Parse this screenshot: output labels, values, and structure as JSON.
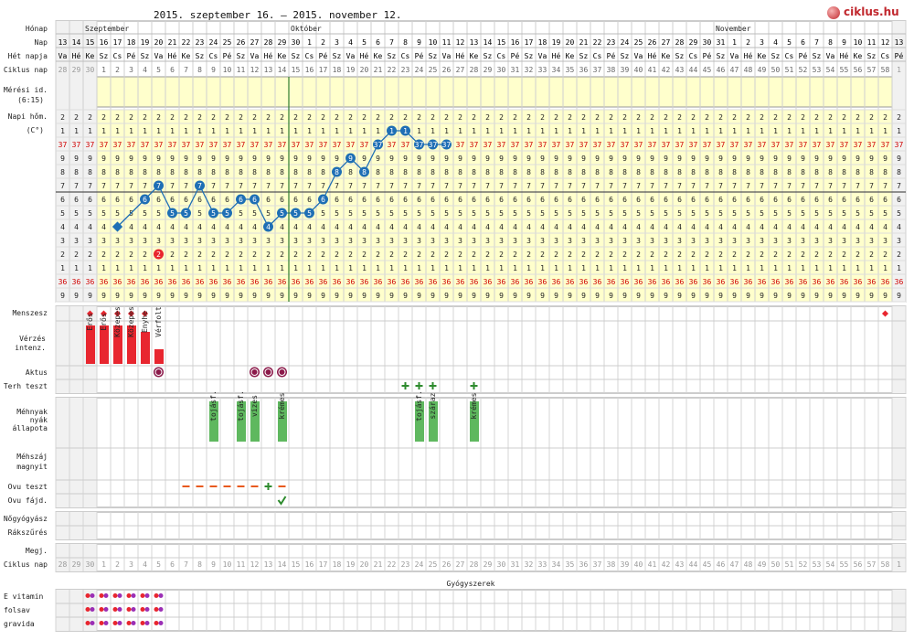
{
  "title": "2015. szeptember 16. – 2015. november 12.",
  "logo": {
    "text": "ciklus.hu"
  },
  "colors": {
    "accent": "#c1272d",
    "temp_line": "#1f6fb5",
    "temp_point": "#1f6fb5",
    "bleed": "#e8262f",
    "mucus": "#5fb85f",
    "yellow": "#ffffcc",
    "gray": "#f1f1f1",
    "ovu_line": "#2e7d2e",
    "red_text": "#d00000",
    "neg": "#e85a1e",
    "pos": "#2e8b2e"
  },
  "header": {
    "month_label": "Hónap",
    "day_label": "Nap",
    "weekday_label": "Hét napja",
    "cycle_label": "Ciklus nap",
    "measure_label": "Mérési id. (6:15)",
    "temp_label": "Napi hőm. (C°)",
    "months": [
      {
        "label": "Szeptember",
        "start": 3
      },
      {
        "label": "Október",
        "start": 18
      },
      {
        "label": "November",
        "start": 49
      }
    ]
  },
  "days": [
    13,
    14,
    15,
    16,
    17,
    18,
    19,
    20,
    21,
    22,
    23,
    24,
    25,
    26,
    27,
    28,
    29,
    30,
    1,
    2,
    3,
    4,
    5,
    6,
    7,
    8,
    9,
    10,
    11,
    12,
    13,
    14,
    15,
    16,
    17,
    18,
    19,
    20,
    21,
    22,
    23,
    24,
    25,
    26,
    27,
    28,
    29,
    30,
    31,
    1,
    2,
    3,
    4,
    5,
    6,
    7,
    8,
    9,
    10,
    11,
    12,
    13
  ],
  "weekdays": [
    "Va",
    "Hé",
    "Ke",
    "Sz",
    "Cs",
    "Pé",
    "Sz",
    "Va",
    "Hé",
    "Ke",
    "Sz",
    "Cs",
    "Pé",
    "Sz",
    "Va",
    "Hé",
    "Ke",
    "Sz",
    "Cs",
    "Pé",
    "Sz",
    "Va",
    "Hé",
    "Ke",
    "Sz",
    "Cs",
    "Pé",
    "Sz",
    "Va",
    "Hé",
    "Ke",
    "Sz",
    "Cs",
    "Pé",
    "Sz",
    "Va",
    "Hé",
    "Ke",
    "Sz",
    "Cs",
    "Pé",
    "Sz",
    "Va",
    "Hé",
    "Ke",
    "Sz",
    "Cs",
    "Pé",
    "Sz",
    "Va",
    "Hé",
    "Ke",
    "Sz",
    "Cs",
    "Pé",
    "Sz",
    "Va",
    "Hé",
    "Ke",
    "Sz",
    "Cs",
    "Pé"
  ],
  "cycle_days": [
    "28",
    "29",
    "30",
    "1",
    "2",
    "3",
    "4",
    "5",
    "6",
    "7",
    "8",
    "9",
    "10",
    "11",
    "12",
    "13",
    "14",
    "15",
    "16",
    "17",
    "18",
    "19",
    "20",
    "21",
    "22",
    "23",
    "24",
    "25",
    "26",
    "27",
    "28",
    "29",
    "30",
    "31",
    "32",
    "33",
    "34",
    "35",
    "36",
    "37",
    "38",
    "39",
    "40",
    "41",
    "42",
    "43",
    "44",
    "45",
    "46",
    "47",
    "48",
    "49",
    "50",
    "51",
    "52",
    "53",
    "54",
    "55",
    "56",
    "57",
    "58",
    "1"
  ],
  "temperature_scale": [
    "2",
    "1",
    "37",
    "9",
    "8",
    "7",
    "6",
    "5",
    "4",
    "3",
    "2",
    "1",
    "36",
    "9"
  ],
  "temperature_readings": [
    {
      "col": 5,
      "label": "4"
    },
    {
      "col": 7,
      "label": "6"
    },
    {
      "col": 8,
      "label": "7"
    },
    {
      "col": 9,
      "label": "5"
    },
    {
      "col": 10,
      "label": "5"
    },
    {
      "col": 11,
      "label": "7"
    },
    {
      "col": 12,
      "label": "5"
    },
    {
      "col": 13,
      "label": "5"
    },
    {
      "col": 14,
      "label": "6"
    },
    {
      "col": 15,
      "label": "6"
    },
    {
      "col": 16,
      "label": "4"
    },
    {
      "col": 17,
      "label": "5"
    },
    {
      "col": 18,
      "label": "5"
    },
    {
      "col": 19,
      "label": "5"
    },
    {
      "col": 20,
      "label": "6"
    },
    {
      "col": 21,
      "label": "8"
    },
    {
      "col": 22,
      "label": "9"
    },
    {
      "col": 23,
      "label": "8"
    },
    {
      "col": 24,
      "label": "37"
    },
    {
      "col": 25,
      "label": "1"
    },
    {
      "col": 26,
      "label": "1"
    },
    {
      "col": 27,
      "label": "37"
    },
    {
      "col": 28,
      "label": "37"
    },
    {
      "col": 29,
      "label": "37"
    }
  ],
  "special_temp": {
    "col": 8,
    "label": "2"
  },
  "sections": {
    "menses_label": "Menszesz",
    "bleeding_label": "Vérzés intenz.",
    "intercourse_label": "Aktus",
    "preg_test_label": "Terh teszt",
    "mucus_label": "Méhnyak nyák állapota",
    "cervix_label": "Méhszáj magnyit",
    "ovu_test_label": "Ovu teszt",
    "ovu_pain_label": "Ovu fájd.",
    "gyn_label": "Nőgyógyász",
    "screening_label": "Rákszűrés",
    "note_label": "Megj.",
    "cycle2_label": "Ciklus nap",
    "meds_label": "Gyógyszerek"
  },
  "menses_days": [
    3,
    4,
    5,
    6,
    7,
    61
  ],
  "bleeding": [
    {
      "col": 3,
      "label": "Erős"
    },
    {
      "col": 4,
      "label": "Erős"
    },
    {
      "col": 5,
      "label": "Közepes"
    },
    {
      "col": 6,
      "label": "Közepes"
    },
    {
      "col": 7,
      "label": "Enyhe"
    },
    {
      "col": 8,
      "label": "Vérfolt"
    }
  ],
  "intercourse": [
    8,
    15,
    16,
    17
  ],
  "preg_tests": [
    26,
    27,
    28,
    31
  ],
  "mucus": [
    {
      "col": 12,
      "label": "tojásf."
    },
    {
      "col": 14,
      "label": "tojásf."
    },
    {
      "col": 15,
      "label": "vizes"
    },
    {
      "col": 17,
      "label": "krémes"
    },
    {
      "col": 27,
      "label": "tojásf."
    },
    {
      "col": 28,
      "label": "száraz"
    },
    {
      "col": 31,
      "label": "krémes"
    }
  ],
  "ovu_negative": [
    10,
    11,
    12,
    13,
    14,
    15,
    17
  ],
  "ovu_positive": [
    16
  ],
  "ovu_pain": [
    17
  ],
  "ovulation_col": 17,
  "medications": [
    {
      "label": "E vitamin",
      "days": [
        3,
        4,
        5,
        6,
        7,
        8
      ]
    },
    {
      "label": "folsav",
      "days": [
        3,
        4,
        5,
        6,
        7,
        8
      ]
    },
    {
      "label": "gravida",
      "days": [
        3,
        4,
        5,
        6,
        7,
        8
      ]
    }
  ]
}
